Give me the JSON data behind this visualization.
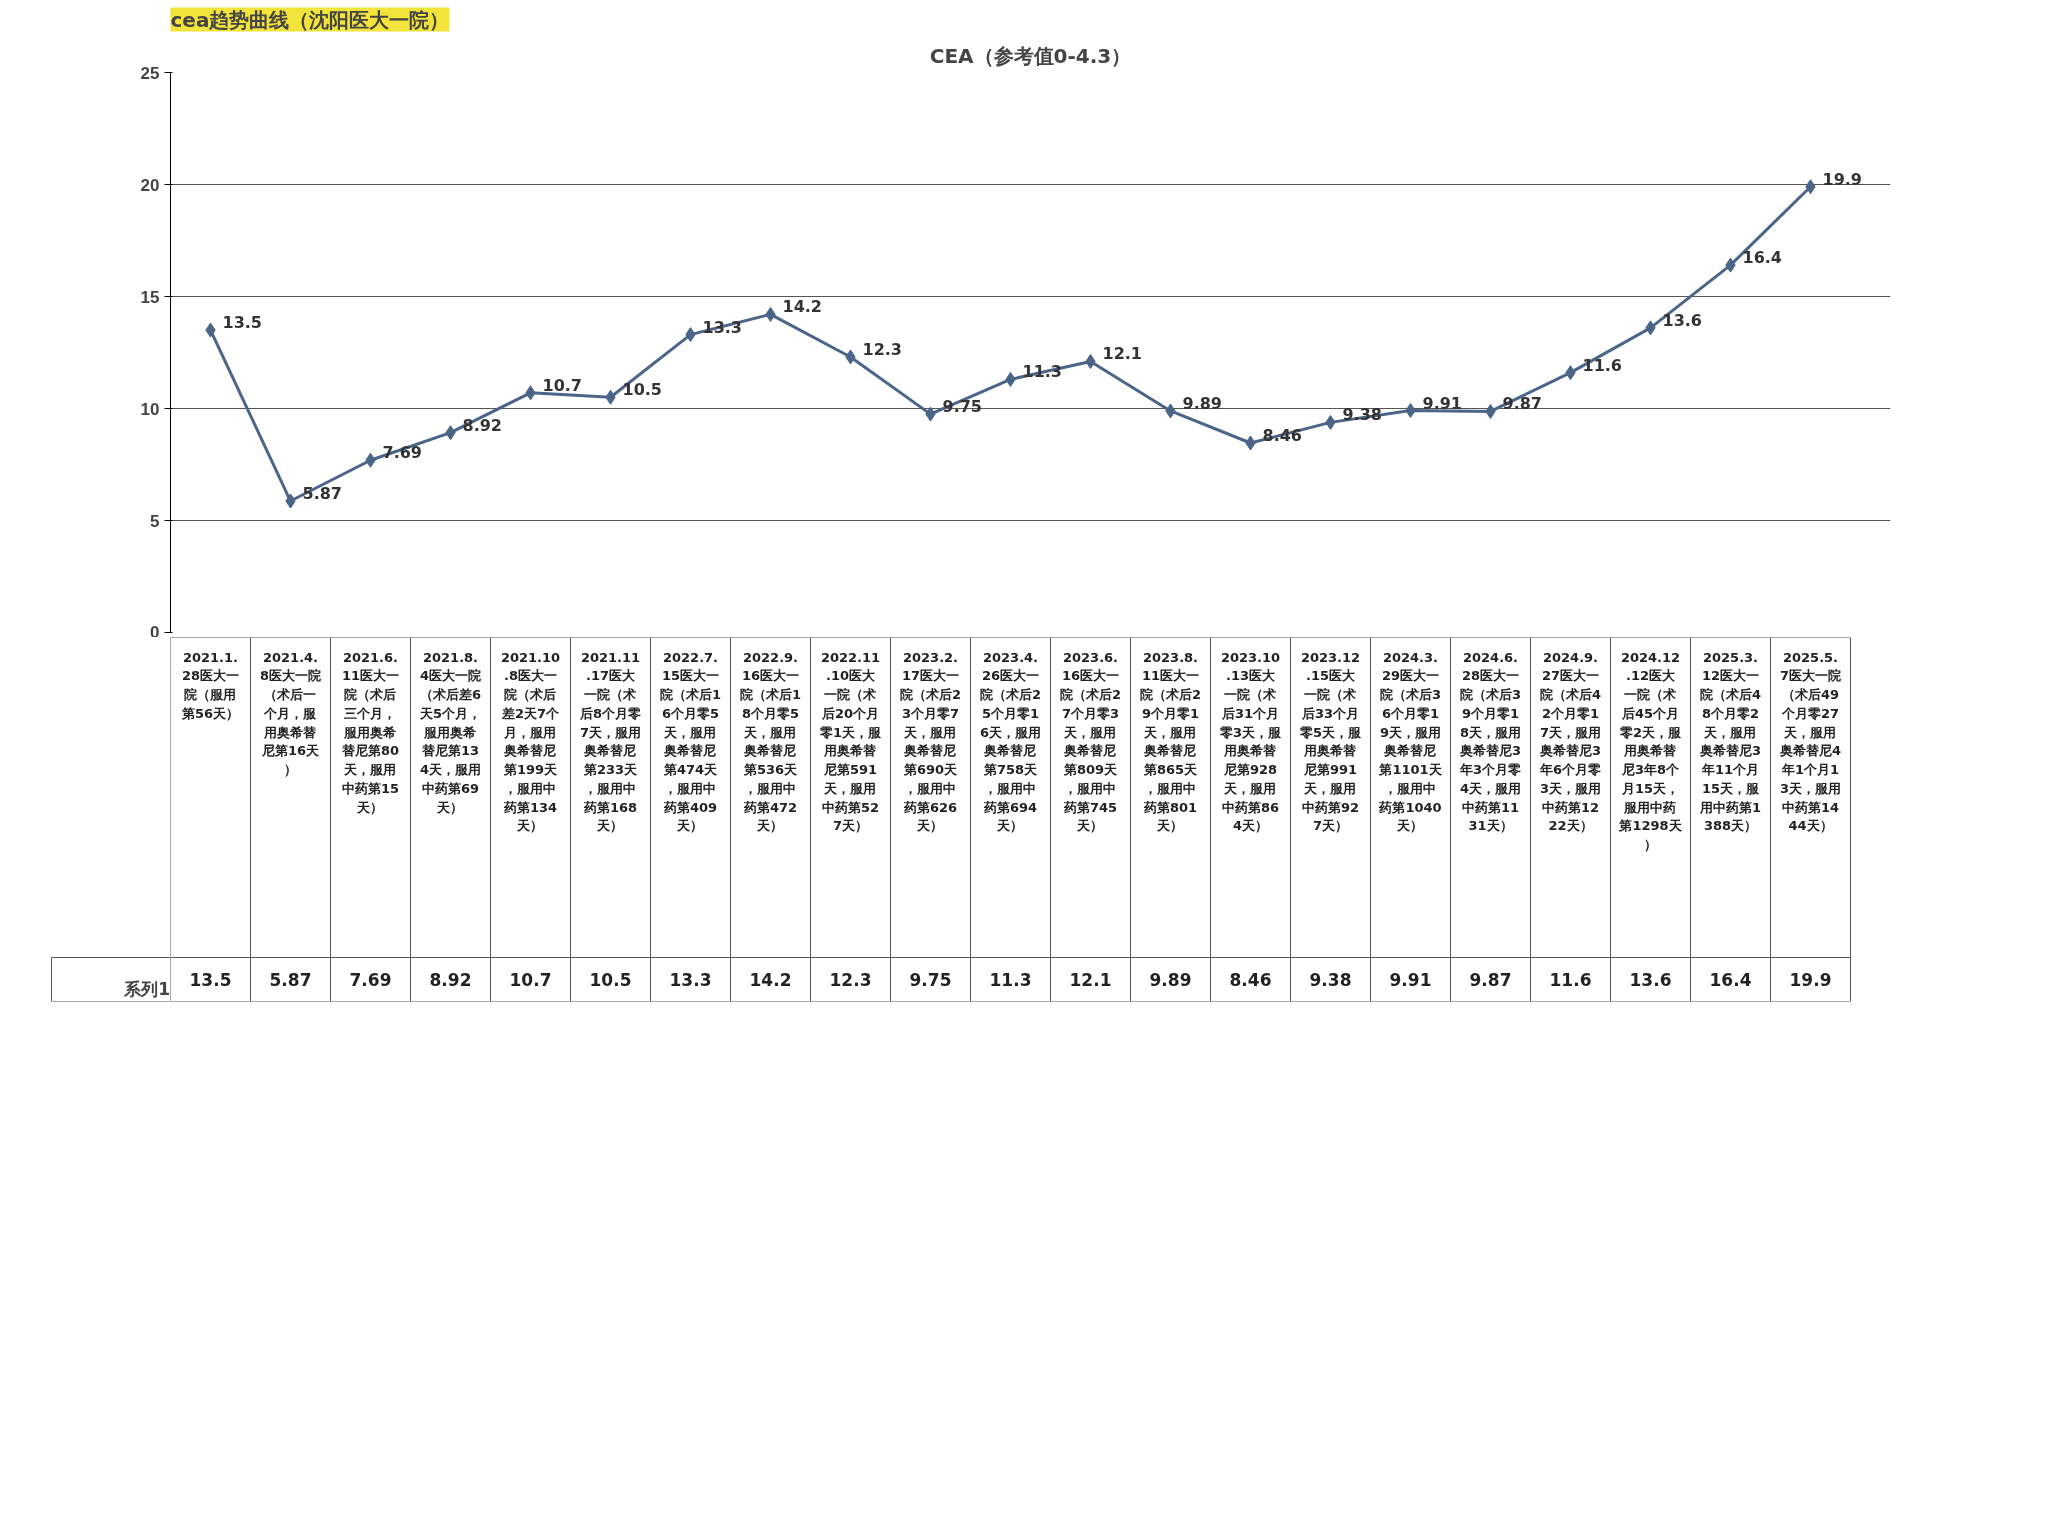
{
  "chart_data": {
    "type": "line",
    "title": "cea趋势曲线（沈阳医大一院）",
    "subtitle": "CEA（参考值0-4.3）",
    "categories": [
      "2021.1.28医大一院（服用第56天）",
      "2021.4.8医大一院（术后一个月，服用奥希替尼第16天）",
      "2021.6.11医大一院（术后三个月，服用奥希替尼第80天，服用中药第15天）",
      "2021.8.4医大一院（术后差6天5个月，服用奥希替尼第134天，服用中药第69天）",
      "2021.10.8医大一院（术后差2天7个月，服用奥希替尼第199天，服用中药第134天）",
      "2021.11.17医大一院（术后8个月零7天，服用奥希替尼第233天，服用中药第168天）",
      "2022.7.15医大一院（术后16个月零5天，服用奥希替尼第474天，服用中药第409天）",
      "2022.9.16医大一院（术后18个月零5天，服用奥希替尼第536天，服用中药第472天）",
      "2022.11.10医大一院（术后20个月零1天，服用奥希替尼第591天，服用中药第527天）",
      "2023.2.17医大一院（术后23个月零7天，服用奥希替尼第690天，服用中药第626天）",
      "2023.4.26医大一院（术后25个月零16天，服用奥希替尼第758天，服用中药第694天）",
      "2023.6.16医大一院（术后27个月零3天，服用奥希替尼第809天，服用中药第745天）",
      "2023.8.11医大一院（术后29个月零1天，服用奥希替尼第865天，服用中药第801天）",
      "2023.10.13医大一院（术后31个月零3天，服用奥希替尼第928天，服用中药第864天）",
      "2023.12.15医大一院（术后33个月零5天，服用奥希替尼第991天，服用中药第927天）",
      "2024.3.29医大一院（术后36个月零19天，服用奥希替尼第1101天，服用中药第1040天）",
      "2024.6.28医大一院（术后39个月零18天，服用奥希替尼3年3个月零4天，服用中药第1131天）",
      "2024.9.27医大一院（术后42个月零17天，服用奥希替尼3年6个月零3天，服用中药第1222天）",
      "2024.12.12医大一院（术后45个月零2天，服用奥希替尼3年8个月15天，服用中药第1298天）",
      "2025.3.12医大一院（术后48个月零2天，服用奥希替尼3年11个月15天，服用中药第1388天）",
      "2025.5.7医大一院（术后49个月零27天，服用奥希替尼4年1个月13天，服用中药第1444天）"
    ],
    "series": [
      {
        "name": "系列1",
        "color": "#4a6587",
        "values": [
          13.5,
          5.87,
          7.69,
          8.92,
          10.7,
          10.5,
          13.3,
          14.2,
          12.3,
          9.75,
          11.3,
          12.1,
          9.89,
          8.46,
          9.38,
          9.91,
          9.87,
          11.6,
          13.6,
          16.4,
          19.9
        ],
        "value_labels": [
          "13.5",
          "5.87",
          "7.69",
          "8.92",
          "10.7",
          "10.5",
          "13.3",
          "14.2",
          "12.3",
          "9.75",
          "11.3",
          "12.1",
          "9.89",
          "8.46",
          "9.38",
          "9.91",
          "9.87",
          "11.6",
          "13.6",
          "16.4",
          "19.9"
        ]
      }
    ],
    "ylim": [
      0,
      25
    ],
    "yticks": [
      0,
      5,
      10,
      15,
      20,
      25
    ],
    "grid": "y",
    "legend": "bottom left",
    "marker": "diamond",
    "line_style": "solid",
    "data_labels": true
  }
}
